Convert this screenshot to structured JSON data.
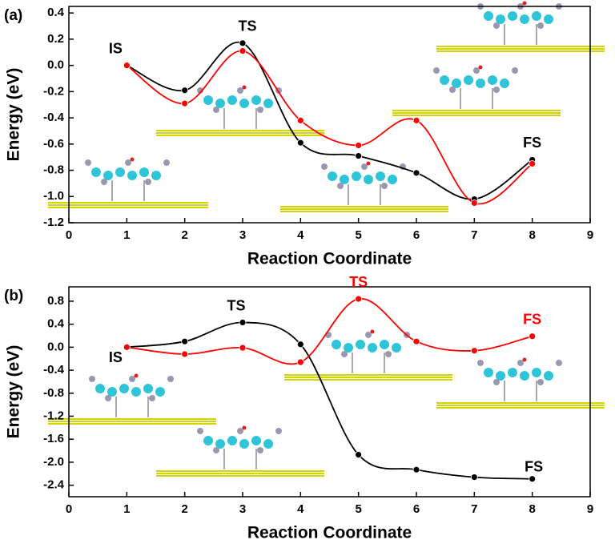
{
  "chart_data": [
    {
      "type": "line",
      "panel_label": "(a)",
      "x_label": "Reaction Coordinate",
      "y_label": "Energy (eV)",
      "x": [
        1,
        2,
        3,
        4,
        5,
        6,
        7,
        8
      ],
      "series": [
        {
          "color": "#000000",
          "values": [
            0.0,
            -0.19,
            0.17,
            -0.59,
            -0.69,
            -0.82,
            -1.02,
            -0.72
          ]
        },
        {
          "color": "#ff0000",
          "values": [
            0.0,
            -0.29,
            0.11,
            -0.42,
            -0.61,
            -0.42,
            -1.05,
            -0.75
          ]
        }
      ],
      "annotations": [
        {
          "text": "IS",
          "color": "#000000"
        },
        {
          "text": "TS",
          "color": "#000000"
        },
        {
          "text": "FS",
          "color": "#000000"
        }
      ],
      "xlim": [
        0,
        9
      ],
      "xticks": [
        0,
        1,
        2,
        3,
        4,
        5,
        6,
        7,
        8,
        9
      ],
      "ylim": [
        -1.2,
        0.45
      ],
      "yticks": [
        -1.2,
        {
          "value": -1,
          "label": "-1.0"
        },
        -0.8,
        -0.6,
        -0.4,
        -0.2,
        {
          "value": 0,
          "label": "0.0"
        },
        0.2,
        0.4
      ]
    },
    {
      "type": "line",
      "panel_label": "(b)",
      "x_label": "Reaction Coordinate",
      "y_label": "Energy (eV)",
      "x": [
        1,
        2,
        3,
        4,
        5,
        6,
        7,
        8
      ],
      "series": [
        {
          "color": "#000000",
          "values": [
            0.0,
            0.1,
            0.43,
            0.05,
            -1.87,
            -2.13,
            -2.26,
            -2.29
          ]
        },
        {
          "color": "#ff0000",
          "values": [
            0.0,
            -0.12,
            -0.01,
            -0.26,
            0.84,
            0.1,
            -0.06,
            0.19
          ]
        }
      ],
      "annotations": [
        {
          "text": "IS",
          "color": "#000000"
        },
        {
          "text": "TS",
          "color": "#000000"
        },
        {
          "text": "TS",
          "color": "#ff0000"
        },
        {
          "text": "FS",
          "color": "#ff0000"
        },
        {
          "text": "FS",
          "color": "#000000"
        }
      ],
      "xlim": [
        0,
        9
      ],
      "xticks": [
        0,
        1,
        2,
        3,
        4,
        5,
        6,
        7,
        8,
        9
      ],
      "ylim": [
        -2.6,
        1.05
      ],
      "yticks": [
        -2.4,
        {
          "value": -2,
          "label": "-2.0"
        },
        -1.6,
        -1.2,
        -0.8,
        -0.4,
        {
          "value": 0,
          "label": "0.0"
        },
        0.4,
        0.8
      ]
    }
  ]
}
